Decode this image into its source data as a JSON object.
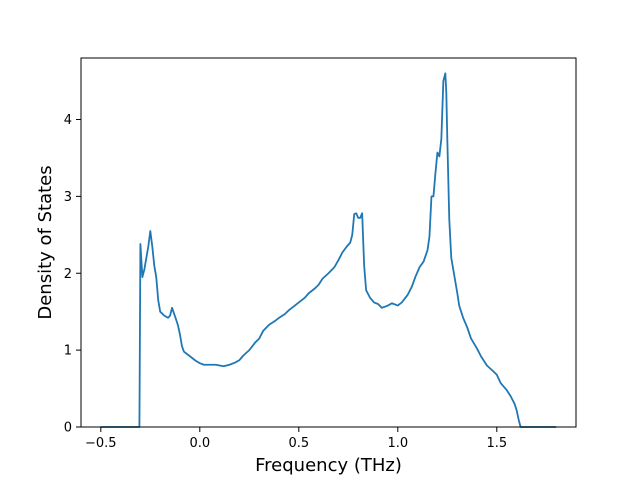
{
  "chart_data": {
    "type": "line",
    "title": "",
    "xlabel": "Frequency (THz)",
    "ylabel": "Density of States",
    "xlim": [
      -0.6,
      1.9
    ],
    "ylim": [
      0,
      4.8
    ],
    "xticks": [
      -0.5,
      0.0,
      0.5,
      1.0,
      1.5
    ],
    "xtick_labels": [
      "−0.5",
      "0.0",
      "0.5",
      "1.0",
      "1.5"
    ],
    "yticks": [
      0,
      1,
      2,
      3,
      4
    ],
    "ytick_labels": [
      "0",
      "1",
      "2",
      "3",
      "4"
    ],
    "grid": false,
    "legend": null,
    "series": [
      {
        "color": "#1f77b4",
        "points": [
          [
            -0.5,
            0.0
          ],
          [
            -0.35,
            0.0
          ],
          [
            -0.31,
            0.0
          ],
          [
            -0.305,
            0.0
          ],
          [
            -0.3,
            2.38
          ],
          [
            -0.29,
            1.95
          ],
          [
            -0.28,
            2.05
          ],
          [
            -0.26,
            2.35
          ],
          [
            -0.25,
            2.55
          ],
          [
            -0.24,
            2.35
          ],
          [
            -0.23,
            2.1
          ],
          [
            -0.22,
            1.95
          ],
          [
            -0.21,
            1.65
          ],
          [
            -0.2,
            1.5
          ],
          [
            -0.18,
            1.45
          ],
          [
            -0.16,
            1.42
          ],
          [
            -0.15,
            1.45
          ],
          [
            -0.14,
            1.55
          ],
          [
            -0.12,
            1.4
          ],
          [
            -0.11,
            1.32
          ],
          [
            -0.1,
            1.2
          ],
          [
            -0.09,
            1.05
          ],
          [
            -0.08,
            0.98
          ],
          [
            -0.05,
            0.92
          ],
          [
            -0.02,
            0.86
          ],
          [
            0.0,
            0.83
          ],
          [
            0.02,
            0.81
          ],
          [
            0.05,
            0.81
          ],
          [
            0.08,
            0.81
          ],
          [
            0.1,
            0.8
          ],
          [
            0.12,
            0.79
          ],
          [
            0.15,
            0.81
          ],
          [
            0.18,
            0.84
          ],
          [
            0.2,
            0.87
          ],
          [
            0.22,
            0.93
          ],
          [
            0.25,
            1.0
          ],
          [
            0.28,
            1.1
          ],
          [
            0.3,
            1.15
          ],
          [
            0.32,
            1.25
          ],
          [
            0.35,
            1.33
          ],
          [
            0.38,
            1.38
          ],
          [
            0.4,
            1.42
          ],
          [
            0.43,
            1.47
          ],
          [
            0.45,
            1.52
          ],
          [
            0.48,
            1.58
          ],
          [
            0.5,
            1.62
          ],
          [
            0.53,
            1.68
          ],
          [
            0.55,
            1.74
          ],
          [
            0.58,
            1.8
          ],
          [
            0.6,
            1.85
          ],
          [
            0.62,
            1.93
          ],
          [
            0.65,
            2.0
          ],
          [
            0.68,
            2.08
          ],
          [
            0.7,
            2.17
          ],
          [
            0.72,
            2.27
          ],
          [
            0.74,
            2.34
          ],
          [
            0.76,
            2.4
          ],
          [
            0.77,
            2.5
          ],
          [
            0.78,
            2.77
          ],
          [
            0.79,
            2.78
          ],
          [
            0.8,
            2.72
          ],
          [
            0.81,
            2.72
          ],
          [
            0.82,
            2.78
          ],
          [
            0.83,
            2.1
          ],
          [
            0.84,
            1.78
          ],
          [
            0.86,
            1.68
          ],
          [
            0.88,
            1.62
          ],
          [
            0.9,
            1.6
          ],
          [
            0.92,
            1.55
          ],
          [
            0.95,
            1.58
          ],
          [
            0.97,
            1.61
          ],
          [
            1.0,
            1.58
          ],
          [
            1.02,
            1.62
          ],
          [
            1.05,
            1.72
          ],
          [
            1.07,
            1.82
          ],
          [
            1.09,
            1.96
          ],
          [
            1.11,
            2.08
          ],
          [
            1.13,
            2.15
          ],
          [
            1.15,
            2.3
          ],
          [
            1.16,
            2.48
          ],
          [
            1.17,
            3.0
          ],
          [
            1.18,
            3.0
          ],
          [
            1.19,
            3.3
          ],
          [
            1.2,
            3.57
          ],
          [
            1.21,
            3.52
          ],
          [
            1.22,
            3.75
          ],
          [
            1.23,
            4.5
          ],
          [
            1.24,
            4.6
          ],
          [
            1.245,
            4.35
          ],
          [
            1.25,
            3.75
          ],
          [
            1.26,
            2.7
          ],
          [
            1.27,
            2.2
          ],
          [
            1.28,
            2.05
          ],
          [
            1.3,
            1.75
          ],
          [
            1.31,
            1.58
          ],
          [
            1.33,
            1.42
          ],
          [
            1.35,
            1.3
          ],
          [
            1.37,
            1.15
          ],
          [
            1.4,
            1.02
          ],
          [
            1.42,
            0.92
          ],
          [
            1.45,
            0.8
          ],
          [
            1.48,
            0.73
          ],
          [
            1.5,
            0.68
          ],
          [
            1.52,
            0.57
          ],
          [
            1.55,
            0.48
          ],
          [
            1.57,
            0.4
          ],
          [
            1.59,
            0.3
          ],
          [
            1.6,
            0.22
          ],
          [
            1.61,
            0.1
          ],
          [
            1.62,
            0.0
          ],
          [
            1.7,
            0.0
          ],
          [
            1.8,
            0.0
          ]
        ]
      }
    ]
  }
}
